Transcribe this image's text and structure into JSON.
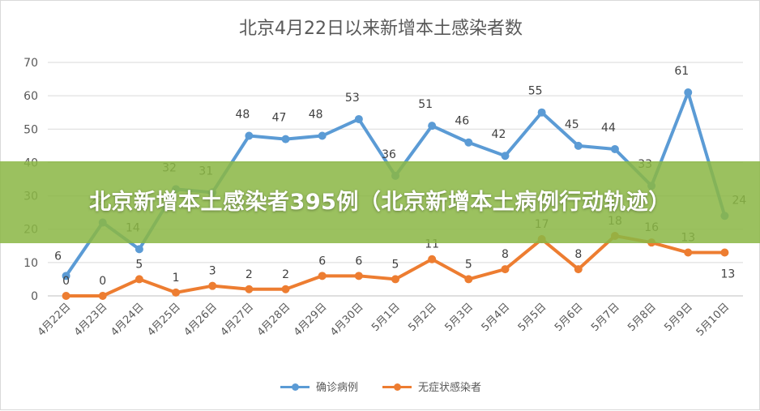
{
  "chart_data": {
    "type": "line",
    "title": "北京4月22日以来新增本土感染者数",
    "categories": [
      "4月22日",
      "4月23日",
      "4月24日",
      "4月25日",
      "4月26日",
      "4月27日",
      "4月28日",
      "4月29日",
      "4月30日",
      "5月1日",
      "5月2日",
      "5月3日",
      "5月4日",
      "5月5日",
      "5月6日",
      "5月7日",
      "5月8日",
      "5月9日",
      "5月10日"
    ],
    "ylim": [
      0,
      70
    ],
    "yticks": [
      0,
      10,
      20,
      30,
      40,
      50,
      60,
      70
    ],
    "grid": true,
    "legend_position": "bottom",
    "series": [
      {
        "name": "确诊病例",
        "color": "#5b9bd5",
        "values": [
          6,
          22,
          14,
          32,
          31,
          48,
          47,
          48,
          53,
          36,
          51,
          46,
          42,
          55,
          45,
          44,
          33,
          61,
          24
        ],
        "labels": [
          "6",
          "22",
          "14",
          "32",
          "31",
          "48",
          "47",
          "48",
          "53",
          "36",
          "51",
          "46",
          "42",
          "55",
          "45",
          "44",
          "33",
          "61",
          "24"
        ]
      },
      {
        "name": "无症状感染者",
        "color": "#ed7d31",
        "values": [
          0,
          0,
          5,
          1,
          3,
          2,
          2,
          6,
          6,
          5,
          11,
          5,
          8,
          17,
          8,
          18,
          16,
          13,
          13
        ],
        "labels": [
          "0",
          "0",
          "5",
          "1",
          "3",
          "2",
          "2",
          "6",
          "6",
          "5",
          "11",
          "5",
          "8",
          "17",
          "8",
          "18",
          "16",
          "13",
          "13"
        ]
      }
    ]
  },
  "overlay": {
    "headline": "北京新增本土感染者395例（北京新增本土病例行动轨迹）"
  }
}
